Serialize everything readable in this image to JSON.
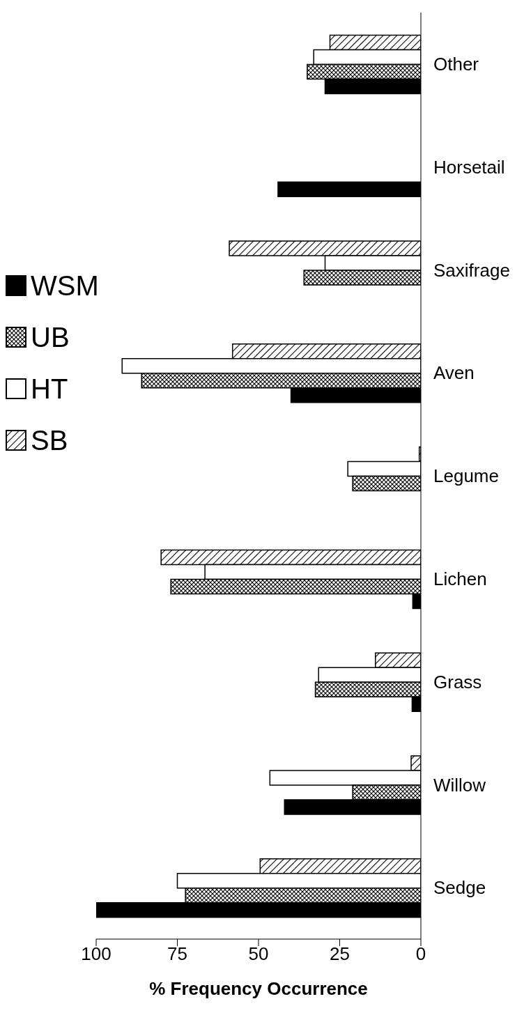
{
  "chart_data": {
    "type": "bar",
    "orientation": "horizontal",
    "xlabel": "% Frequency Occurrence",
    "categories": [
      "Other",
      "Horsetail",
      "Saxifrage",
      "Aven",
      "Legume",
      "Lichen",
      "Grass",
      "Willow",
      "Sedge"
    ],
    "series": [
      {
        "name": "WSM",
        "color": "#000000",
        "values": [
          29.5,
          44,
          null,
          40,
          null,
          2.5,
          2.7,
          42,
          100
        ]
      },
      {
        "name": "UB",
        "color": "#000000",
        "values": [
          35,
          null,
          36,
          86,
          21,
          77,
          32.5,
          21,
          72.5
        ]
      },
      {
        "name": "HT",
        "color": "#000000",
        "values": [
          33,
          null,
          29.5,
          92,
          22.5,
          66.5,
          31.5,
          46.5,
          75
        ]
      },
      {
        "name": "SB",
        "color": "#000000",
        "values": [
          28,
          null,
          59,
          58,
          0.5,
          80,
          14,
          3,
          49.5
        ]
      }
    ],
    "xlim": [
      100,
      0
    ],
    "xticks": [
      100,
      75,
      50,
      25,
      0
    ],
    "legend": "left"
  }
}
